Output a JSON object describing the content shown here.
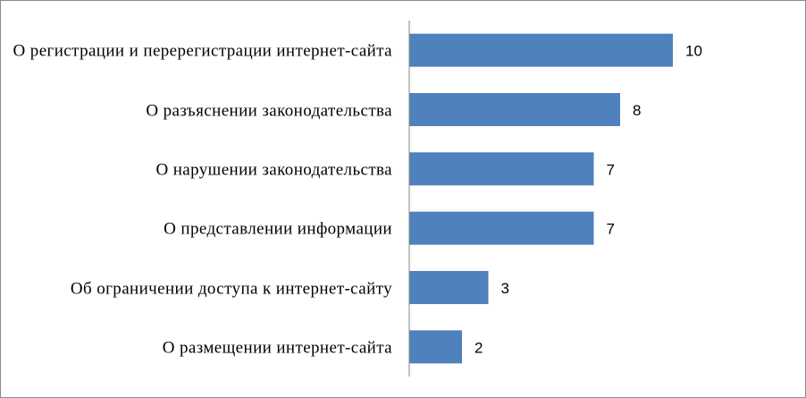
{
  "chart_data": {
    "type": "bar",
    "orientation": "horizontal",
    "categories": [
      "О регистрации и перерегистрации интернет-сайта",
      "О разъяснении законодательства",
      "О нарушении законодательства",
      "О представлении информации",
      "Об ограничении  доступа к интернет-сайту",
      "О размещении интернет-сайта"
    ],
    "values": [
      10,
      8,
      7,
      7,
      3,
      2
    ],
    "color": "#4f81bd",
    "xlim": [
      0,
      14
    ]
  }
}
